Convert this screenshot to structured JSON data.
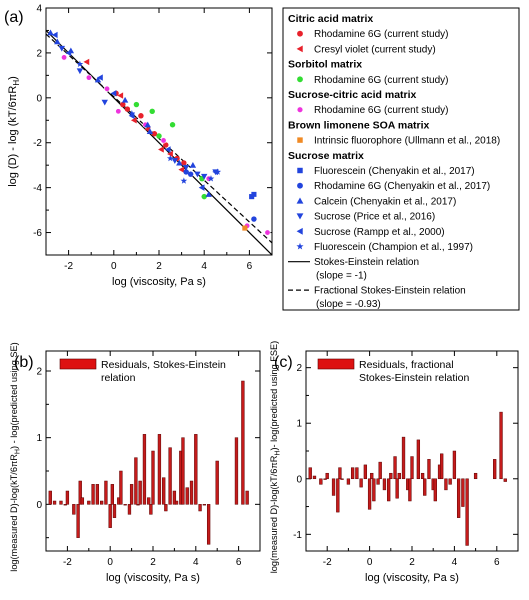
{
  "chart_data": [
    {
      "panel": "(a)",
      "type": "scatter",
      "xlabel": "log (viscosity, Pa s)",
      "ylabel_main": "log (D) - log (kT/6πR",
      "ylabel_sub": "H",
      "ylabel_end": ")",
      "xlim": [
        -3,
        7
      ],
      "ylim": [
        -7,
        4
      ],
      "xticks": [
        -2,
        0,
        2,
        4,
        6
      ],
      "yticks": [
        4,
        2,
        0,
        -2,
        -4,
        -6
      ],
      "legend": {
        "groups": [
          {
            "header": "Citric acid matrix",
            "items": [
              {
                "label": "Rhodamine 6G (current study)",
                "marker": "circle",
                "color": "#e8212b"
              },
              {
                "label": "Cresyl violet (current study)",
                "marker": "triangle-left",
                "color": "#e8212b"
              }
            ]
          },
          {
            "header": "Sorbitol matrix",
            "items": [
              {
                "label": "Rhodamine 6G (current study)",
                "marker": "circle",
                "color": "#33dd33"
              }
            ]
          },
          {
            "header": "Sucrose-citric acid matrix",
            "items": [
              {
                "label": "Rhodamine 6G (current study)",
                "marker": "circle",
                "color": "#ee33dd"
              }
            ]
          },
          {
            "header": "Brown limonene SOA matrix",
            "items": [
              {
                "label": "Intrinsic fluorophore (Ullmann et al., 2018)",
                "marker": "square",
                "color": "#f08a24"
              }
            ]
          },
          {
            "header": "Sucrose matrix",
            "items": [
              {
                "label": "Fluorescein (Chenyakin et al., 2017)",
                "marker": "square",
                "color": "#2244dd"
              },
              {
                "label": "Rhodamine 6G (Chenyakin et al., 2017)",
                "marker": "circle",
                "color": "#2244dd"
              },
              {
                "label": "Calcein (Chenyakin et al., 2017)",
                "marker": "triangle-up",
                "color": "#2244dd"
              },
              {
                "label": "Sucrose (Price et al., 2016)",
                "marker": "triangle-down",
                "color": "#2244dd"
              },
              {
                "label": "Sucrose (Rampp et al., 2000)",
                "marker": "triangle-left",
                "color": "#2244dd"
              },
              {
                "label": "Fluorescein (Champion et al., 1997)",
                "marker": "star",
                "color": "#2244dd"
              }
            ]
          }
        ],
        "lines": [
          {
            "label": "Stokes-Einstein relation",
            "sub": "(slope = -1)",
            "style": "solid"
          },
          {
            "label": "Fractional Stokes-Einstein relation",
            "sub": "(slope = -0.93)",
            "style": "dashed"
          }
        ]
      },
      "lines": [
        {
          "name": "Stokes-Einstein relation",
          "intercept": 0,
          "slope": -1
        },
        {
          "name": "Fractional Stokes-Einstein relation",
          "intercept": 0.05,
          "slope": -0.93
        }
      ],
      "points": [
        {
          "marker": "circle",
          "color": "#e8212b",
          "xy": [
            [
              0.1,
              0.2
            ],
            [
              0.4,
              -0.3
            ],
            [
              1.2,
              -0.8
            ],
            [
              1.8,
              -1.6
            ],
            [
              2.3,
              -2.1
            ],
            [
              2.8,
              -2.7
            ],
            [
              3.1,
              -2.9
            ],
            [
              0.6,
              -0.5
            ]
          ]
        },
        {
          "marker": "triangle-left",
          "color": "#e8212b",
          "xy": [
            [
              0.3,
              0.1
            ],
            [
              0.9,
              -1.0
            ],
            [
              1.5,
              -1.4
            ],
            [
              2.1,
              -2.3
            ],
            [
              2.5,
              -2.5
            ],
            [
              3.0,
              -3.2
            ],
            [
              -1.2,
              1.6
            ]
          ]
        },
        {
          "marker": "circle",
          "color": "#33dd33",
          "xy": [
            [
              1.0,
              -0.3
            ],
            [
              1.7,
              -0.6
            ],
            [
              2.6,
              -1.2
            ],
            [
              3.9,
              -3.6
            ],
            [
              4.0,
              -4.4
            ],
            [
              2.0,
              -1.7
            ]
          ]
        },
        {
          "marker": "circle",
          "color": "#ee33dd",
          "xy": [
            [
              -2.2,
              1.8
            ],
            [
              -1.1,
              0.9
            ],
            [
              0.2,
              -0.6
            ],
            [
              1.4,
              -1.2
            ],
            [
              2.2,
              -1.9
            ],
            [
              3.4,
              -3.4
            ],
            [
              4.2,
              -3.6
            ],
            [
              5.9,
              -5.7
            ],
            [
              6.8,
              -6.0
            ],
            [
              -0.3,
              0.4
            ]
          ]
        },
        {
          "marker": "square",
          "color": "#f08a24",
          "xy": [
            [
              5.8,
              -5.8
            ]
          ]
        },
        {
          "marker": "square",
          "color": "#2244dd",
          "xy": [
            [
              6.1,
              -4.4
            ],
            [
              6.2,
              -4.3
            ]
          ]
        },
        {
          "marker": "circle",
          "color": "#2244dd",
          "xy": [
            [
              3.2,
              -3.3
            ],
            [
              3.4,
              -3.4
            ],
            [
              6.2,
              -5.4
            ]
          ]
        },
        {
          "marker": "triangle-up",
          "color": "#2244dd",
          "xy": [
            [
              -2.8,
              2.9
            ],
            [
              -2.5,
              2.5
            ],
            [
              -1.9,
              2.1
            ],
            [
              -0.7,
              0.8
            ],
            [
              0.5,
              -0.1
            ],
            [
              1.6,
              -1.5
            ],
            [
              2.9,
              -2.9
            ],
            [
              3.5,
              -3.0
            ],
            [
              4.2,
              -4.3
            ],
            [
              1.5,
              -1.2
            ]
          ]
        },
        {
          "marker": "triangle-down",
          "color": "#2244dd",
          "xy": [
            [
              -2.3,
              2.2
            ],
            [
              -1.5,
              1.2
            ],
            [
              -0.4,
              -0.2
            ],
            [
              2.7,
              -2.8
            ],
            [
              3.2,
              -3.1
            ],
            [
              3.7,
              -3.4
            ],
            [
              4.5,
              -3.3
            ],
            [
              4.0,
              -3.5
            ]
          ]
        },
        {
          "marker": "triangle-left",
          "color": "#2244dd",
          "xy": [
            [
              -2.6,
              2.8
            ],
            [
              -2.0,
              2.0
            ],
            [
              -0.6,
              0.9
            ],
            [
              0.0,
              0.2
            ],
            [
              0.8,
              -0.8
            ],
            [
              2.4,
              -2.3
            ],
            [
              4.5,
              -3.3
            ],
            [
              3.9,
              -4.0
            ]
          ]
        },
        {
          "marker": "star",
          "color": "#2244dd",
          "xy": [
            [
              -1.5,
              1.5
            ],
            [
              0.8,
              -0.7
            ],
            [
              2.5,
              -2.7
            ],
            [
              3.1,
              -3.7
            ],
            [
              4.6,
              -3.3
            ],
            [
              4.3,
              -3.6
            ]
          ]
        }
      ]
    },
    {
      "panel": "(b)",
      "type": "bar",
      "legend": {
        "label": "Residuals, Stokes-Einstein",
        "label2": "relation",
        "color": "#dd1111"
      },
      "xlabel": "log (viscosity, Pa s)",
      "ylabel_a": "log(measured D)-log(kT/6πR",
      "ylabel_b": "H",
      "ylabel_c": ") - log(predicted using SE)",
      "xlim": [
        -3,
        7
      ],
      "ylim": [
        -0.7,
        2.3
      ],
      "xticks": [
        -2,
        0,
        2,
        4,
        6
      ],
      "yticks": [
        2,
        1,
        0
      ],
      "x": [
        -2.8,
        -2.6,
        -2.3,
        -2.1,
        -2.0,
        -1.7,
        -1.5,
        -1.4,
        -1.3,
        -1.0,
        -0.8,
        -0.6,
        -0.4,
        -0.2,
        0.0,
        0.1,
        0.2,
        0.4,
        0.5,
        0.7,
        0.9,
        1.0,
        1.2,
        1.3,
        1.4,
        1.6,
        1.8,
        1.9,
        2.0,
        2.3,
        2.5,
        2.6,
        2.8,
        3.0,
        3.1,
        3.3,
        3.4,
        3.6,
        3.8,
        4.0,
        4.2,
        4.4,
        4.6,
        5.0,
        5.9,
        6.2,
        6.4
      ],
      "values": [
        0.2,
        0.05,
        0.05,
        0.0,
        0.2,
        -0.15,
        -0.5,
        0.35,
        0.1,
        0.05,
        0.3,
        0.3,
        0.05,
        0.35,
        -0.35,
        0.3,
        -0.2,
        0.1,
        0.5,
        0.0,
        -0.15,
        0.3,
        0.7,
        0.0,
        0.35,
        1.05,
        0.1,
        -0.15,
        0.8,
        1.05,
        0.4,
        -0.1,
        0.85,
        0.2,
        0.05,
        0.8,
        1.0,
        0.25,
        0.35,
        1.05,
        -0.1,
        0.0,
        -0.6,
        0.65,
        1.0,
        1.85,
        0.2
      ]
    },
    {
      "panel": "(c)",
      "type": "bar",
      "legend": {
        "label": "Residuals, fractional",
        "label2": "Stokes-Einstein relation",
        "color": "#dd1111"
      },
      "xlabel": "log (viscosity, Pa s)",
      "ylabel_a": "log(measured D)-log(kT/6πR",
      "ylabel_b": "H",
      "ylabel_c": ")- log(predicted using FSE)",
      "xlim": [
        -3,
        7
      ],
      "ylim": [
        -1.3,
        2.3
      ],
      "xticks": [
        -2,
        0,
        2,
        4,
        6
      ],
      "yticks": [
        2,
        1,
        0,
        -1
      ],
      "x": [
        -2.8,
        -2.6,
        -2.3,
        -2.1,
        -2.0,
        -1.7,
        -1.5,
        -1.4,
        -1.3,
        -1.0,
        -0.8,
        -0.6,
        -0.4,
        -0.2,
        0.0,
        0.1,
        0.2,
        0.4,
        0.5,
        0.7,
        0.9,
        1.0,
        1.2,
        1.3,
        1.4,
        1.6,
        1.8,
        1.9,
        2.0,
        2.3,
        2.5,
        2.6,
        2.8,
        3.0,
        3.1,
        3.3,
        3.4,
        3.6,
        3.8,
        4.0,
        4.2,
        4.4,
        4.6,
        5.0,
        5.9,
        6.2,
        6.4
      ],
      "values": [
        0.2,
        0.05,
        -0.1,
        0.0,
        0.1,
        -0.3,
        -0.6,
        0.2,
        0.0,
        -0.1,
        0.2,
        0.2,
        -0.15,
        0.25,
        -0.55,
        0.1,
        -0.4,
        -0.1,
        0.3,
        -0.2,
        -0.4,
        0.1,
        0.4,
        -0.35,
        0.1,
        0.75,
        -0.2,
        -0.4,
        0.4,
        0.7,
        0.1,
        -0.3,
        0.35,
        -0.2,
        -0.4,
        0.25,
        0.45,
        -0.2,
        -0.1,
        0.5,
        -0.7,
        -0.5,
        -1.2,
        0.1,
        0.35,
        1.2,
        -0.05
      ]
    }
  ]
}
